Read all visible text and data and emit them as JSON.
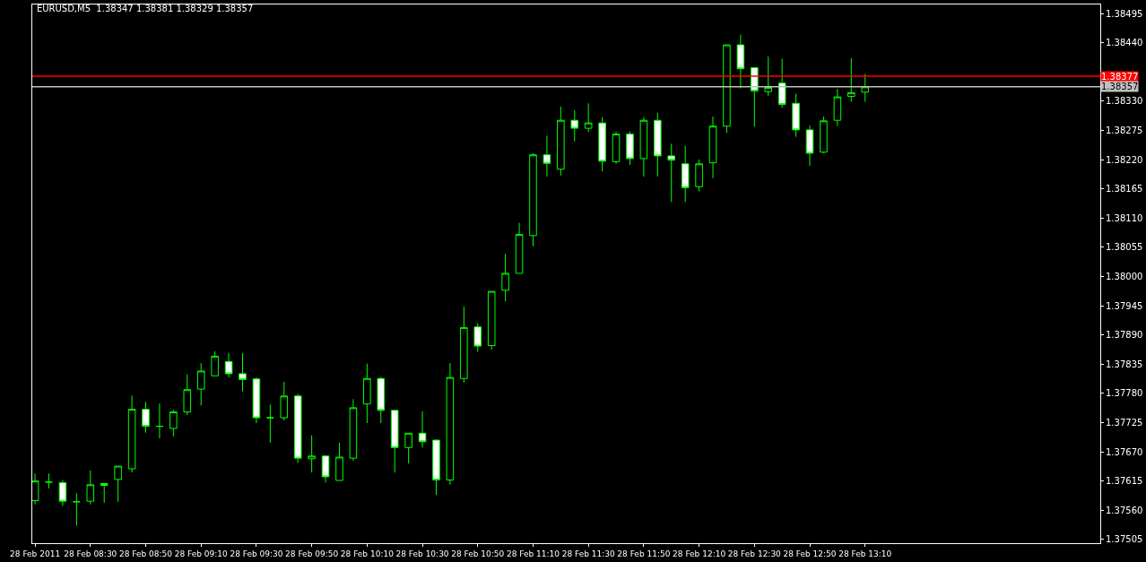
{
  "chart_data": {
    "type": "candlestick",
    "title": "EURUSD,M5  1.38347 1.38381 1.38329 1.38357",
    "x": [
      "2011-02-28T08:10",
      "2011-02-28T08:15",
      "2011-02-28T08:20",
      "2011-02-28T08:25",
      "2011-02-28T08:30",
      "2011-02-28T08:35",
      "2011-02-28T08:40",
      "2011-02-28T08:45",
      "2011-02-28T08:50",
      "2011-02-28T08:55",
      "2011-02-28T09:00",
      "2011-02-28T09:05",
      "2011-02-28T09:10",
      "2011-02-28T09:15",
      "2011-02-28T09:20",
      "2011-02-28T09:25",
      "2011-02-28T09:30",
      "2011-02-28T09:35",
      "2011-02-28T09:40",
      "2011-02-28T09:45",
      "2011-02-28T09:50",
      "2011-02-28T09:55",
      "2011-02-28T10:00",
      "2011-02-28T10:05",
      "2011-02-28T10:10",
      "2011-02-28T10:15",
      "2011-02-28T10:20",
      "2011-02-28T10:25",
      "2011-02-28T10:30",
      "2011-02-28T10:35",
      "2011-02-28T10:40",
      "2011-02-28T10:45",
      "2011-02-28T10:50",
      "2011-02-28T10:55",
      "2011-02-28T11:00",
      "2011-02-28T11:05",
      "2011-02-28T11:10",
      "2011-02-28T11:15",
      "2011-02-28T11:20",
      "2011-02-28T11:25",
      "2011-02-28T11:30",
      "2011-02-28T11:35",
      "2011-02-28T11:40",
      "2011-02-28T11:45",
      "2011-02-28T11:50",
      "2011-02-28T11:55",
      "2011-02-28T12:00",
      "2011-02-28T12:05",
      "2011-02-28T12:10",
      "2011-02-28T12:15",
      "2011-02-28T12:20",
      "2011-02-28T12:25",
      "2011-02-28T12:30",
      "2011-02-28T12:35",
      "2011-02-28T12:40",
      "2011-02-28T12:45",
      "2011-02-28T12:50",
      "2011-02-28T12:55",
      "2011-02-28T13:00",
      "2011-02-28T13:05",
      "2011-02-28T13:10"
    ],
    "ohlc": [
      [
        1.37578,
        1.37629,
        1.37571,
        1.37615
      ],
      [
        1.37613,
        1.37629,
        1.37601,
        1.37613
      ],
      [
        1.37612,
        1.37617,
        1.37568,
        1.37577
      ],
      [
        1.37576,
        1.37592,
        1.37531,
        1.37576
      ],
      [
        1.37577,
        1.37635,
        1.37571,
        1.37608
      ],
      [
        1.3761,
        1.3761,
        1.37574,
        1.37607
      ],
      [
        1.37618,
        1.37643,
        1.37576,
        1.37643
      ],
      [
        1.37638,
        1.37776,
        1.37631,
        1.3775
      ],
      [
        1.3775,
        1.37764,
        1.37706,
        1.37718
      ],
      [
        1.37718,
        1.37761,
        1.37695,
        1.37718
      ],
      [
        1.37714,
        1.37749,
        1.37699,
        1.37745
      ],
      [
        1.37745,
        1.37816,
        1.37739,
        1.37787
      ],
      [
        1.37788,
        1.37837,
        1.37757,
        1.37822
      ],
      [
        1.37813,
        1.37859,
        1.37813,
        1.3785
      ],
      [
        1.3784,
        1.37856,
        1.3781,
        1.37817
      ],
      [
        1.37817,
        1.37856,
        1.37784,
        1.37806
      ],
      [
        1.37807,
        1.3781,
        1.37724,
        1.37734
      ],
      [
        1.37734,
        1.37759,
        1.37687,
        1.37734
      ],
      [
        1.37734,
        1.37802,
        1.37729,
        1.37775
      ],
      [
        1.37775,
        1.37779,
        1.37649,
        1.37658
      ],
      [
        1.37657,
        1.37701,
        1.37631,
        1.37662
      ],
      [
        1.37662,
        1.37664,
        1.37612,
        1.37623
      ],
      [
        1.37616,
        1.37687,
        1.37616,
        1.3766
      ],
      [
        1.37658,
        1.37769,
        1.37653,
        1.37753
      ],
      [
        1.3776,
        1.37836,
        1.37724,
        1.37808
      ],
      [
        1.37808,
        1.37811,
        1.37724,
        1.37748
      ],
      [
        1.37748,
        1.37748,
        1.37631,
        1.37678
      ],
      [
        1.37678,
        1.37705,
        1.37648,
        1.37705
      ],
      [
        1.37705,
        1.37746,
        1.37678,
        1.37689
      ],
      [
        1.37692,
        1.37693,
        1.37589,
        1.37617
      ],
      [
        1.37617,
        1.37837,
        1.37608,
        1.3781
      ],
      [
        1.37808,
        1.37943,
        1.378,
        1.37904
      ],
      [
        1.37905,
        1.37912,
        1.37858,
        1.37869
      ],
      [
        1.3787,
        1.37972,
        1.37862,
        1.37972
      ],
      [
        1.37974,
        1.38043,
        1.37953,
        1.38006
      ],
      [
        1.38006,
        1.38101,
        1.38006,
        1.38079
      ],
      [
        1.38077,
        1.38232,
        1.38057,
        1.38229
      ],
      [
        1.38229,
        1.38265,
        1.38188,
        1.38213
      ],
      [
        1.38202,
        1.3832,
        1.3819,
        1.38294
      ],
      [
        1.38294,
        1.38313,
        1.38254,
        1.38279
      ],
      [
        1.38279,
        1.38326,
        1.38272,
        1.38289
      ],
      [
        1.38289,
        1.383,
        1.38198,
        1.38217
      ],
      [
        1.38216,
        1.38273,
        1.38212,
        1.38268
      ],
      [
        1.38268,
        1.38273,
        1.3821,
        1.38222
      ],
      [
        1.38222,
        1.383,
        1.38188,
        1.38294
      ],
      [
        1.38294,
        1.38308,
        1.38188,
        1.38227
      ],
      [
        1.38227,
        1.3825,
        1.3814,
        1.38219
      ],
      [
        1.38212,
        1.38246,
        1.3814,
        1.38167
      ],
      [
        1.38169,
        1.3822,
        1.3816,
        1.38212
      ],
      [
        1.38214,
        1.38301,
        1.38185,
        1.38283
      ],
      [
        1.38283,
        1.38436,
        1.3827,
        1.38436
      ],
      [
        1.38436,
        1.38455,
        1.38354,
        1.38391
      ],
      [
        1.38393,
        1.38393,
        1.38282,
        1.38349
      ],
      [
        1.38348,
        1.38414,
        1.3834,
        1.38356
      ],
      [
        1.38364,
        1.3841,
        1.38318,
        1.38324
      ],
      [
        1.38326,
        1.38344,
        1.38263,
        1.38276
      ],
      [
        1.38276,
        1.38284,
        1.38208,
        1.38232
      ],
      [
        1.38234,
        1.38301,
        1.38232,
        1.38293
      ],
      [
        1.38294,
        1.38353,
        1.38283,
        1.38338
      ],
      [
        1.38339,
        1.38411,
        1.38329,
        1.38346
      ],
      [
        1.38347,
        1.38381,
        1.38329,
        1.38357
      ]
    ],
    "color": "#00ff00",
    "xlim": [
      "2011-02-28T08:09",
      "2011-02-28T14:35"
    ],
    "xticks": [
      {
        "value": "2011-02-28T08:10",
        "label": "28 Feb 2011"
      },
      {
        "value": "2011-02-28T08:30",
        "label": "28 Feb 08:30"
      },
      {
        "value": "2011-02-28T08:50",
        "label": "28 Feb 08:50"
      },
      {
        "value": "2011-02-28T09:10",
        "label": "28 Feb 09:10"
      },
      {
        "value": "2011-02-28T09:30",
        "label": "28 Feb 09:30"
      },
      {
        "value": "2011-02-28T09:50",
        "label": "28 Feb 09:50"
      },
      {
        "value": "2011-02-28T10:10",
        "label": "28 Feb 10:10"
      },
      {
        "value": "2011-02-28T10:30",
        "label": "28 Feb 10:30"
      },
      {
        "value": "2011-02-28T10:50",
        "label": "28 Feb 10:50"
      },
      {
        "value": "2011-02-28T11:10",
        "label": "28 Feb 11:10"
      },
      {
        "value": "2011-02-28T11:30",
        "label": "28 Feb 11:30"
      },
      {
        "value": "2011-02-28T11:50",
        "label": "28 Feb 11:50"
      },
      {
        "value": "2011-02-28T12:10",
        "label": "28 Feb 12:10"
      },
      {
        "value": "2011-02-28T12:30",
        "label": "28 Feb 12:30"
      },
      {
        "value": "2011-02-28T12:50",
        "label": "28 Feb 12:50"
      },
      {
        "value": "2011-02-28T13:10",
        "label": "28 Feb 13:10"
      }
    ],
    "ylim": [
      1.37498,
      1.38512
    ],
    "yticks": [
      {
        "value": 1.38495,
        "label": "1.38495"
      },
      {
        "value": 1.3844,
        "label": "1.38440"
      },
      {
        "value": 1.38385,
        "label": null
      },
      {
        "value": 1.3833,
        "label": "1.38330"
      },
      {
        "value": 1.38275,
        "label": "1.38275"
      },
      {
        "value": 1.3822,
        "label": "1.38220"
      },
      {
        "value": 1.38165,
        "label": "1.38165"
      },
      {
        "value": 1.3811,
        "label": "1.38110"
      },
      {
        "value": 1.38055,
        "label": "1.38055"
      },
      {
        "value": 1.38,
        "label": "1.38000"
      },
      {
        "value": 1.37945,
        "label": "1.37945"
      },
      {
        "value": 1.3789,
        "label": "1.37890"
      },
      {
        "value": 1.37835,
        "label": "1.37835"
      },
      {
        "value": 1.3778,
        "label": "1.37780"
      },
      {
        "value": 1.37725,
        "label": "1.37725"
      },
      {
        "value": 1.3767,
        "label": "1.37670"
      },
      {
        "value": 1.37615,
        "label": "1.37615"
      },
      {
        "value": 1.3756,
        "label": "1.37560"
      },
      {
        "value": 1.37505,
        "label": "1.37505"
      }
    ],
    "ref_lines": [
      {
        "axis": "y",
        "value": 1.38377,
        "label": "1.38377",
        "color": "#ff0000"
      },
      {
        "axis": "y",
        "value": 1.38357,
        "label": "1.38357",
        "color": "#c0c0c0"
      }
    ],
    "grid": false,
    "legend": false
  }
}
